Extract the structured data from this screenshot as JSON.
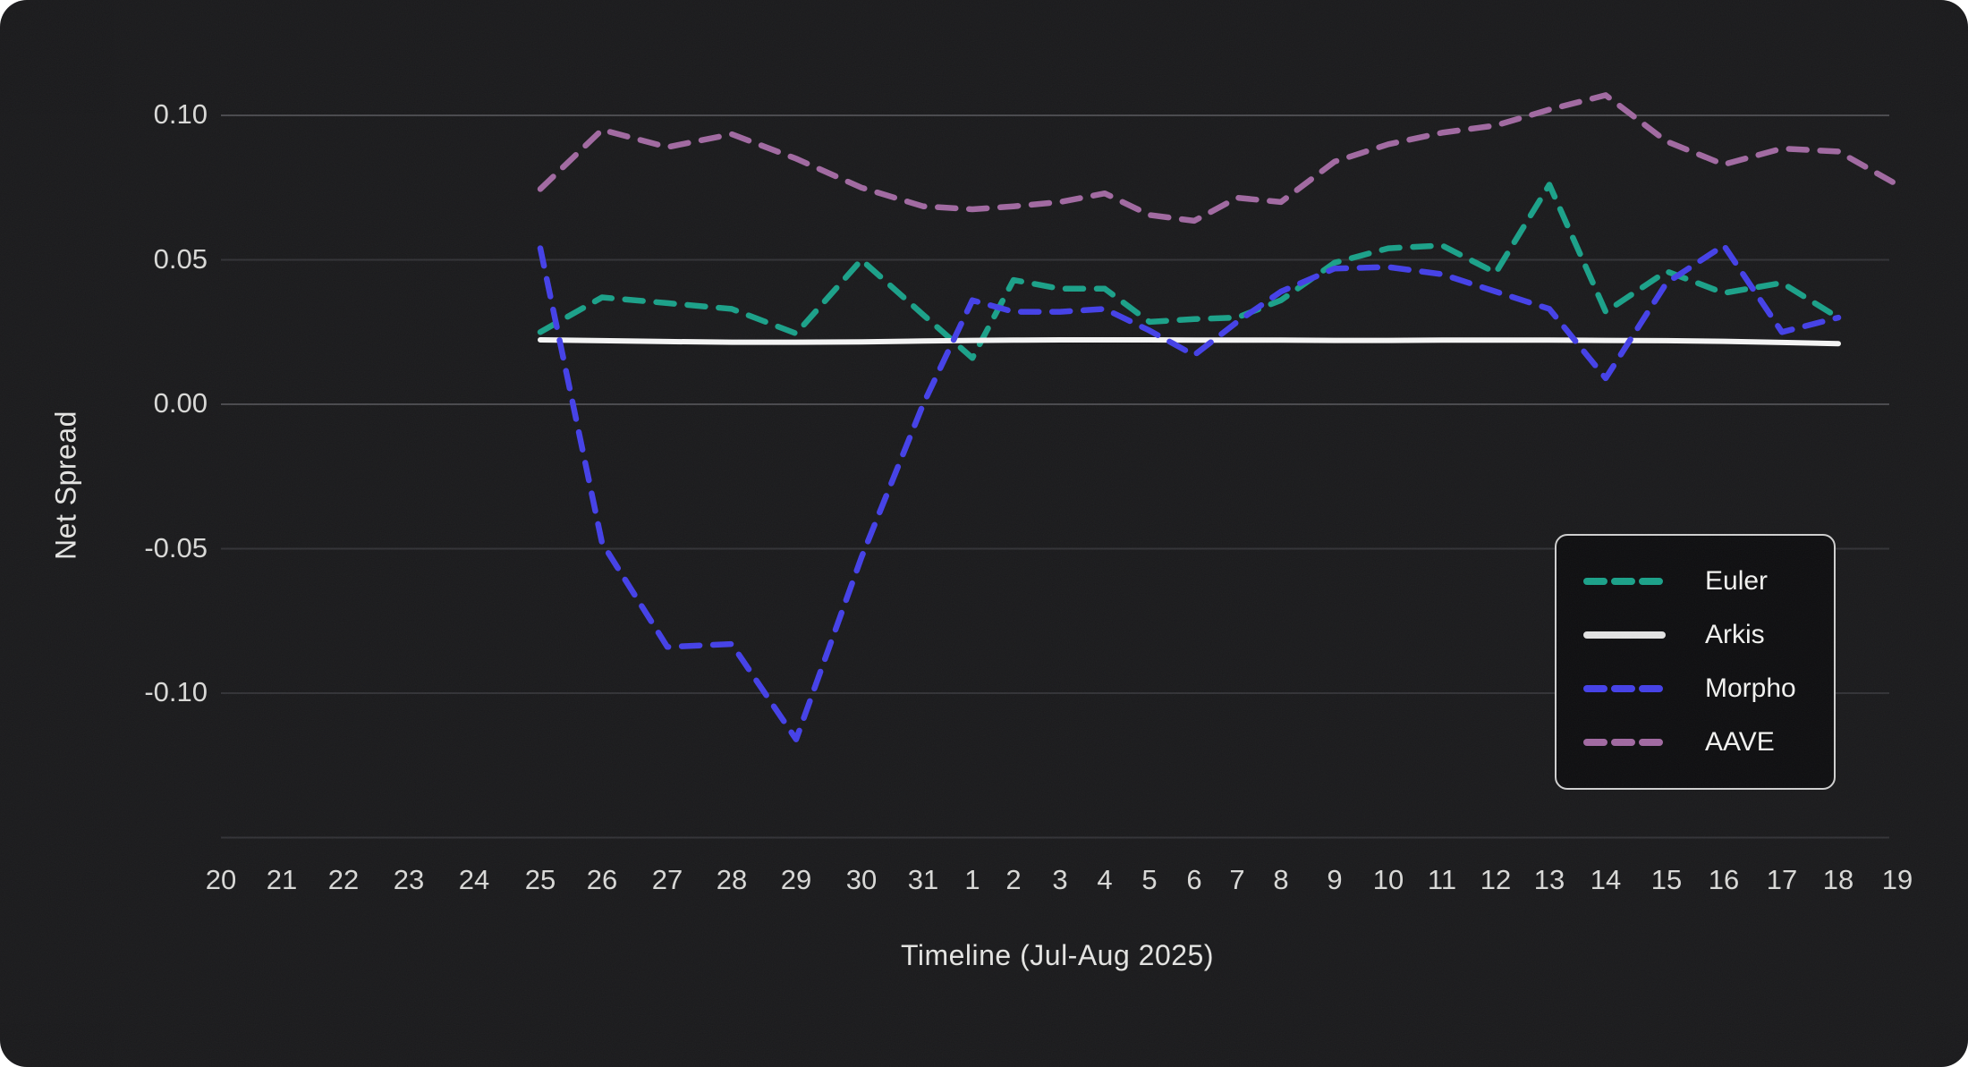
{
  "figure": {
    "y_axis_title": "Net Spread",
    "x_axis_title": "Timeline (Jul-Aug 2025)"
  },
  "legend": {
    "items": [
      {
        "label": "Euler",
        "color": "#1aa189",
        "dashed": true
      },
      {
        "label": "Arkis",
        "color": "#f5f5f5",
        "dashed": false
      },
      {
        "label": "Morpho",
        "color": "#4440e8",
        "dashed": true
      },
      {
        "label": "AAVE",
        "color": "#a169a1",
        "dashed": true
      }
    ]
  },
  "colors": {
    "background": "#1a1a1c",
    "grid_major": "#49494d",
    "grid_minor": "#323236",
    "tick_text": "#d9d9d7",
    "title_text": "#e4e4e2"
  },
  "chart_data": {
    "type": "line",
    "title": "",
    "xlabel": "Timeline (Jul-Aug 2025)",
    "ylabel": "Net Spread",
    "x_tick_labels": [
      "20",
      "21",
      "22",
      "23",
      "24",
      "25",
      "26",
      "27",
      "28",
      "29",
      "30",
      "31",
      "1",
      "2",
      "3",
      "4",
      "5",
      "6",
      "7",
      "8",
      "9",
      "10",
      "11",
      "12",
      "13",
      "14",
      "15",
      "16",
      "17",
      "18",
      "19"
    ],
    "y_tick_labels": [
      "0.10",
      "0.05",
      "0.00",
      "-0.05",
      "-0.10"
    ],
    "y_tick_values": [
      0.1,
      0.05,
      0.0,
      -0.05,
      -0.1
    ],
    "ylim": [
      -0.15,
      0.135
    ],
    "grid": "horizontal",
    "legend_position": "right-middle",
    "x_dates": "Jul 25 2025 through Aug 18 2025 (AAVE extends to Aug 19); ticks span Jul 20 - Aug 19",
    "series": [
      {
        "name": "Euler",
        "color": "#1aa189",
        "dashed": true,
        "start_tick_index": 5,
        "values": [
          0.025,
          0.037,
          0.035,
          0.033,
          0.0245,
          0.05,
          0.031,
          0.016,
          0.043,
          0.04,
          0.04,
          0.0285,
          0.0295,
          0.03,
          0.036,
          0.049,
          0.054,
          0.055,
          0.0455,
          0.076,
          0.032,
          0.046,
          0.0385,
          0.042,
          0.03
        ]
      },
      {
        "name": "Arkis",
        "color": "#f5f5f5",
        "dashed": false,
        "start_tick_index": 5,
        "values": [
          0.0223,
          0.022,
          0.0217,
          0.0215,
          0.0215,
          0.0216,
          0.0219,
          0.0221,
          0.0222,
          0.0223,
          0.0223,
          0.0223,
          0.0222,
          0.0222,
          0.0222,
          0.0221,
          0.0221,
          0.0222,
          0.0222,
          0.0222,
          0.0221,
          0.022,
          0.0218,
          0.0214,
          0.021
        ]
      },
      {
        "name": "Morpho",
        "color": "#4440e8",
        "dashed": true,
        "start_tick_index": 5,
        "values": [
          0.054,
          -0.048,
          -0.084,
          -0.083,
          -0.116,
          -0.053,
          0.0,
          0.036,
          0.032,
          0.032,
          0.033,
          0.0255,
          0.017,
          0.0285,
          0.039,
          0.047,
          0.0475,
          0.045,
          0.039,
          0.033,
          0.009,
          0.042,
          0.055,
          0.025,
          0.03
        ]
      },
      {
        "name": "AAVE",
        "color": "#a169a1",
        "dashed": true,
        "start_tick_index": 5,
        "values": [
          0.0745,
          0.095,
          0.089,
          0.0935,
          0.085,
          0.075,
          0.0685,
          0.0675,
          0.0685,
          0.07,
          0.073,
          0.0655,
          0.0635,
          0.0715,
          0.07,
          0.084,
          0.09,
          0.094,
          0.0965,
          0.102,
          0.107,
          0.091,
          0.083,
          0.0885,
          0.0875,
          0.076
        ]
      }
    ]
  }
}
